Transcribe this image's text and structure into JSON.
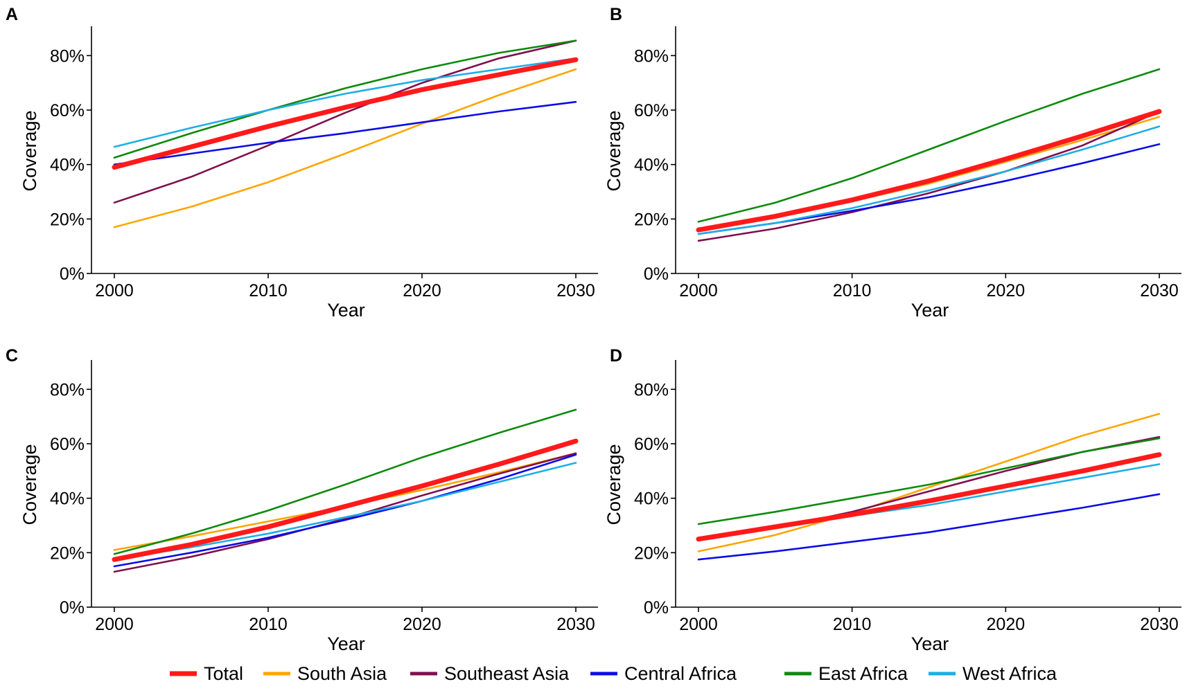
{
  "chart_data": [
    {
      "type": "line",
      "panel": "A",
      "xlabel": "Year",
      "ylabel": "Coverage",
      "xlim": [
        2000,
        2030
      ],
      "ylim": [
        0,
        0.9
      ],
      "xticks": [
        2000,
        2010,
        2020,
        2030
      ],
      "yticks": [
        0,
        0.2,
        0.4,
        0.6,
        0.8
      ],
      "x": [
        2000,
        2005,
        2010,
        2015,
        2020,
        2025,
        2030
      ],
      "series": [
        {
          "name": "South Asia",
          "values": [
            0.17,
            0.245,
            0.335,
            0.44,
            0.55,
            0.655,
            0.75
          ]
        },
        {
          "name": "Southeast Asia",
          "values": [
            0.26,
            0.355,
            0.47,
            0.59,
            0.7,
            0.79,
            0.855
          ]
        },
        {
          "name": "Central Africa",
          "values": [
            0.4,
            0.44,
            0.48,
            0.515,
            0.555,
            0.595,
            0.63
          ]
        },
        {
          "name": "East Africa",
          "values": [
            0.425,
            0.515,
            0.6,
            0.68,
            0.75,
            0.81,
            0.855
          ]
        },
        {
          "name": "West Africa",
          "values": [
            0.465,
            0.535,
            0.6,
            0.66,
            0.71,
            0.75,
            0.79
          ]
        },
        {
          "name": "Total",
          "values": [
            0.39,
            0.465,
            0.54,
            0.61,
            0.675,
            0.73,
            0.785
          ]
        }
      ]
    },
    {
      "type": "line",
      "panel": "B",
      "xlabel": "Year",
      "ylabel": "Coverage",
      "xlim": [
        2000,
        2030
      ],
      "ylim": [
        0,
        0.9
      ],
      "xticks": [
        2000,
        2010,
        2020,
        2030
      ],
      "yticks": [
        0,
        0.2,
        0.4,
        0.6,
        0.8
      ],
      "x": [
        2000,
        2005,
        2010,
        2015,
        2020,
        2025,
        2030
      ],
      "series": [
        {
          "name": "South Asia",
          "values": [
            0.155,
            0.205,
            0.265,
            0.33,
            0.41,
            0.49,
            0.575
          ]
        },
        {
          "name": "Southeast Asia",
          "values": [
            0.12,
            0.165,
            0.225,
            0.295,
            0.375,
            0.47,
            0.595
          ]
        },
        {
          "name": "Central Africa",
          "values": [
            0.145,
            0.185,
            0.23,
            0.28,
            0.34,
            0.405,
            0.475
          ]
        },
        {
          "name": "East Africa",
          "values": [
            0.19,
            0.26,
            0.35,
            0.455,
            0.56,
            0.66,
            0.75
          ]
        },
        {
          "name": "West Africa",
          "values": [
            0.145,
            0.185,
            0.24,
            0.305,
            0.375,
            0.455,
            0.54
          ]
        },
        {
          "name": "Total",
          "values": [
            0.16,
            0.21,
            0.27,
            0.34,
            0.42,
            0.505,
            0.595
          ]
        }
      ]
    },
    {
      "type": "line",
      "panel": "C",
      "xlabel": "Year",
      "ylabel": "Coverage",
      "xlim": [
        2000,
        2030
      ],
      "ylim": [
        0,
        0.9
      ],
      "xticks": [
        2000,
        2010,
        2020,
        2030
      ],
      "yticks": [
        0,
        0.2,
        0.4,
        0.6,
        0.8
      ],
      "x": [
        2000,
        2005,
        2010,
        2015,
        2020,
        2025,
        2030
      ],
      "series": [
        {
          "name": "South Asia",
          "values": [
            0.21,
            0.26,
            0.315,
            0.37,
            0.43,
            0.495,
            0.565
          ]
        },
        {
          "name": "Southeast Asia",
          "values": [
            0.13,
            0.185,
            0.25,
            0.325,
            0.41,
            0.49,
            0.565
          ]
        },
        {
          "name": "Central Africa",
          "values": [
            0.15,
            0.2,
            0.255,
            0.32,
            0.39,
            0.47,
            0.56
          ]
        },
        {
          "name": "East Africa",
          "values": [
            0.195,
            0.27,
            0.355,
            0.45,
            0.55,
            0.64,
            0.725
          ]
        },
        {
          "name": "West Africa",
          "values": [
            0.175,
            0.22,
            0.27,
            0.33,
            0.39,
            0.46,
            0.53
          ]
        },
        {
          "name": "Total",
          "values": [
            0.175,
            0.23,
            0.295,
            0.37,
            0.445,
            0.525,
            0.61
          ]
        }
      ]
    },
    {
      "type": "line",
      "panel": "D",
      "xlabel": "Year",
      "ylabel": "Coverage",
      "xlim": [
        2000,
        2030
      ],
      "ylim": [
        0,
        0.9
      ],
      "xticks": [
        2000,
        2010,
        2020,
        2030
      ],
      "yticks": [
        0,
        0.2,
        0.4,
        0.6,
        0.8
      ],
      "x": [
        2000,
        2005,
        2010,
        2015,
        2020,
        2025,
        2030
      ],
      "series": [
        {
          "name": "South Asia",
          "values": [
            0.205,
            0.265,
            0.345,
            0.44,
            0.535,
            0.63,
            0.71
          ]
        },
        {
          "name": "Southeast Asia",
          "values": [
            0.25,
            0.29,
            0.35,
            0.425,
            0.5,
            0.57,
            0.625
          ]
        },
        {
          "name": "Central Africa",
          "values": [
            0.175,
            0.205,
            0.24,
            0.275,
            0.32,
            0.365,
            0.415
          ]
        },
        {
          "name": "East Africa",
          "values": [
            0.305,
            0.35,
            0.4,
            0.45,
            0.51,
            0.57,
            0.62
          ]
        },
        {
          "name": "West Africa",
          "values": [
            0.255,
            0.29,
            0.335,
            0.375,
            0.425,
            0.475,
            0.525
          ]
        },
        {
          "name": "Total",
          "values": [
            0.25,
            0.295,
            0.34,
            0.39,
            0.445,
            0.5,
            0.56
          ]
        }
      ]
    }
  ],
  "legend": {
    "position": "bottom",
    "items": [
      {
        "name": "Total",
        "color": "#ff1a1a"
      },
      {
        "name": "South Asia",
        "color": "#ffa500"
      },
      {
        "name": "Southeast Asia",
        "color": "#800f4f"
      },
      {
        "name": "Central Africa",
        "color": "#0b0be6"
      },
      {
        "name": "East Africa",
        "color": "#0d8a0d"
      },
      {
        "name": "West Africa",
        "color": "#1eaee6"
      }
    ]
  },
  "colors": {
    "Total": "#ff1a1a",
    "South Asia": "#ffa500",
    "Southeast Asia": "#800f4f",
    "Central Africa": "#0b0be6",
    "East Africa": "#0d8a0d",
    "West Africa": "#1eaee6"
  }
}
